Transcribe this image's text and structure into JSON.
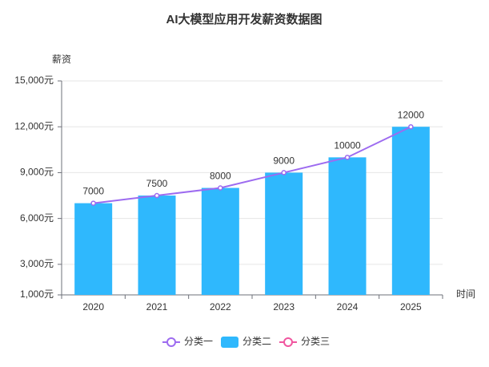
{
  "chart_data": {
    "type": "bar",
    "title": "AI大模型应用开发薪资数据图",
    "y_axis_label": "薪资",
    "x_axis_label": "时间",
    "categories": [
      "2020",
      "2021",
      "2022",
      "2023",
      "2024",
      "2025"
    ],
    "series": [
      {
        "name": "分类一",
        "type": "line",
        "color": "#9d6bf0",
        "values": [
          7000,
          7500,
          8000,
          9000,
          10000,
          12000
        ]
      },
      {
        "name": "分类二",
        "type": "bar",
        "color": "#2fb8fd",
        "values": [
          7000,
          7500,
          8000,
          9000,
          10000,
          12000
        ]
      },
      {
        "name": "分类三",
        "type": "line",
        "color": "#f0569f",
        "values": [
          null,
          null,
          null,
          null,
          null,
          null
        ]
      }
    ],
    "ylim": [
      1000,
      15000
    ],
    "yticks": [
      {
        "value": 1000,
        "label": "1,000元"
      },
      {
        "value": 3000,
        "label": "3,000元"
      },
      {
        "value": 6000,
        "label": "6,000元"
      },
      {
        "value": 9000,
        "label": "9,000元"
      },
      {
        "value": 12000,
        "label": "12,000元"
      },
      {
        "value": 15000,
        "label": "15,000元"
      }
    ],
    "grid": true,
    "legend": "bottom"
  }
}
